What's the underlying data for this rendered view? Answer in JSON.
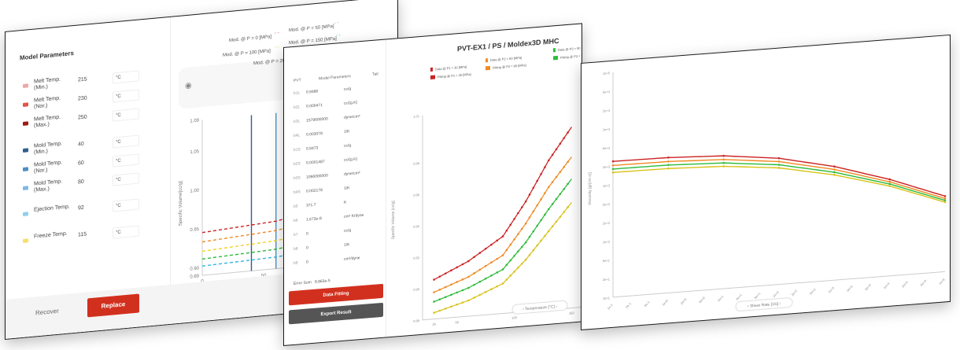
{
  "params_panel": {
    "title": "Model Parameters",
    "rows": [
      {
        "label": "Melt Temp. (Min.)",
        "value": "215",
        "unit": "°C",
        "color": "#f1a7a7"
      },
      {
        "label": "Melt Temp. (Nor.)",
        "value": "230",
        "unit": "°C",
        "color": "#e0554a"
      },
      {
        "label": "Melt Temp. (Max.)",
        "value": "250",
        "unit": "°C",
        "color": "#9b1c16"
      },
      {
        "label": "Mold Temp. (Min.)",
        "value": "40",
        "unit": "°C",
        "color": "#2f5f8c"
      },
      {
        "label": "Mold Temp. (Nor.)",
        "value": "60",
        "unit": "°C",
        "color": "#4d8fc4"
      },
      {
        "label": "Mold Temp. (Max.)",
        "value": "80",
        "unit": "°C",
        "color": "#7db9e6"
      },
      {
        "label": "Ejection Temp.",
        "value": "92",
        "unit": "°C",
        "color": "#8fd0ea"
      },
      {
        "label": "Freeze Temp.",
        "value": "115",
        "unit": "°C",
        "color": "#f7e06a"
      }
    ],
    "recover_label": "Recover",
    "replace_label": "Replace",
    "legend": [
      "Mod. @ P = 0 [MPa]",
      "Mod. @ P = 50 [MPa]",
      "Mod. @ P = 100 [MPa]",
      "Mod. @ P = 150 [MPa]",
      "Mod. @ P = 20"
    ],
    "y_axis_label": "Specific Volume[cc/g]",
    "x_axis_label": "Tempera",
    "y_ticks": [
      "1.09",
      "1.05",
      "1.00",
      "0.95",
      "0.90",
      "0.89"
    ],
    "x_ticks": [
      "0",
      "50",
      "100"
    ],
    "colors": {
      "accent": "#d2301e",
      "series": [
        "#cc2222",
        "#f08a24",
        "#f5d020",
        "#2dbb3a",
        "#2fb6e0"
      ]
    }
  },
  "fitting_panel": {
    "title": "PVT-EX1 / PS / Moldex3D MHC",
    "col_pvt": "PVT",
    "col_params": "Model Parameters",
    "col_tait": "Tait",
    "rows": [
      {
        "key": "b1L",
        "value": "0.9486",
        "unit": "cc/g"
      },
      {
        "key": "b2L",
        "value": "0.000471",
        "unit": "cc/(g.K)"
      },
      {
        "key": "b3L",
        "value": "1579600000",
        "unit": "dyne/cm²"
      },
      {
        "key": "b4L",
        "value": "0.003078",
        "unit": "1/K"
      },
      {
        "key": "b1S",
        "value": "0.9473",
        "unit": "cc/g"
      },
      {
        "key": "b2S",
        "value": "0.0001487",
        "unit": "cc/(g.K)"
      },
      {
        "key": "b3S",
        "value": "1096000000",
        "unit": "dyne/cm²"
      },
      {
        "key": "b4S",
        "value": "0.002178",
        "unit": "1/K"
      },
      {
        "key": "b5",
        "value": "371.7",
        "unit": "K"
      },
      {
        "key": "b6",
        "value": "1.673e-8",
        "unit": "cm² K/dyne"
      },
      {
        "key": "b7",
        "value": "0",
        "unit": "cc/g"
      },
      {
        "key": "b8",
        "value": "0",
        "unit": "1/K"
      },
      {
        "key": "b9",
        "value": "0",
        "unit": "cm²/dyne"
      }
    ],
    "error_label": "Error Sum",
    "error_value": "8.863e-5",
    "fit_label": "Data Fitting",
    "export_label": "Export Result",
    "legend": [
      "Data @ P1 = 30 [MPa]",
      "Data @ P2 = 60 [MPa]",
      "Data @ P3 = 90 [MPa]",
      "Data @ P4 = 120 [MPa]",
      "Fitting @ P1 = 30 [MPa]",
      "Fitting @ P2 = 60 [MPa]",
      "Fitting @ P3 = 90 [MPa]",
      "Fitting @ P4 = 120 [MPa]"
    ],
    "y_axis_label": "Specific Volume [cc/g]",
    "x_axis_label": "Temperature [°C]",
    "y_ticks": [
      "1.01",
      "0.98",
      "0.96",
      "0.94",
      "0.92",
      "0.90",
      "0.88"
    ],
    "x_ticks": [
      "30",
      "50",
      "100",
      "150"
    ],
    "colors": {
      "series": [
        "#cc2222",
        "#f08a24",
        "#2dbb3a",
        "#d9c21a"
      ]
    }
  },
  "viscosity_panel": {
    "y_axis_label": "Viscosity [g/(cm s)]",
    "x_axis_label": "Shear Rate [1/s]",
    "y_ticks": [
      "1e+5",
      "5e+4",
      "2e+4",
      "1e+4",
      "5e+3",
      "2e+3",
      "1e+3",
      "5e+2",
      "2e+2",
      "1e+2",
      "5e+1",
      "2e+1",
      "1e+1"
    ],
    "x_ticks": [
      "1e-1",
      "2e-1",
      "5e-1",
      "1e+0",
      "2e+0",
      "5e+0",
      "1e+1",
      "2e+1",
      "5e+1",
      "1e+2",
      "2e+2",
      "5e+2",
      "1e+3",
      "2e+3",
      "5e+3",
      "1e+4",
      "2e+4",
      "5e+4",
      "1e+5"
    ],
    "colors": {
      "series": [
        "#cc2222",
        "#f08a24",
        "#2dbb3a",
        "#d9c21a"
      ]
    }
  },
  "chart_data": [
    {
      "type": "line",
      "y_ticks": [
        1.09,
        1.05,
        1.0,
        0.95,
        0.9,
        0.89
      ],
      "x_ticks": [
        0,
        50,
        100
      ],
      "series": [
        {
          "name": "Mod. @ P = 0 [MPa]",
          "x": [
            0,
            60,
            80,
            120,
            160
          ],
          "y": [
            0.945,
            0.951,
            0.957,
            0.985,
            1.01
          ]
        },
        {
          "name": "Mod. @ P = 50 [MPa]",
          "x": [
            0,
            60,
            80,
            120,
            160
          ],
          "y": [
            0.933,
            0.939,
            0.944,
            0.968,
            0.99
          ]
        },
        {
          "name": "Mod. @ P = 100 [MPa]",
          "x": [
            0,
            60,
            80,
            120,
            160
          ],
          "y": [
            0.921,
            0.926,
            0.93,
            0.952,
            0.972
          ]
        },
        {
          "name": "Mod. @ P = 150 [MPa]",
          "x": [
            0,
            60,
            80,
            120,
            160
          ],
          "y": [
            0.911,
            0.915,
            0.919,
            0.937,
            0.955
          ]
        },
        {
          "name": "Mod. @ P = 20",
          "x": [
            0,
            60,
            80,
            120,
            160
          ],
          "y": [
            0.902,
            0.905,
            0.908,
            0.922,
            0.94
          ]
        }
      ],
      "verticals": [
        40,
        60,
        80,
        92,
        115
      ]
    },
    {
      "type": "scatter",
      "y_ticks": [
        1.01,
        0.98,
        0.96,
        0.94,
        0.92,
        0.9,
        0.88
      ],
      "x_ticks": [
        30,
        50,
        100,
        150
      ],
      "series": [
        {
          "name": "Data @ P1 = 30 [MPa]",
          "x": [
            30,
            60,
            90,
            110,
            130,
            150
          ],
          "y": [
            0.905,
            0.915,
            0.929,
            0.95,
            0.975,
            0.995
          ]
        },
        {
          "name": "Data @ P2 = 60 [MPa]",
          "x": [
            30,
            60,
            90,
            110,
            130,
            150
          ],
          "y": [
            0.897,
            0.905,
            0.917,
            0.936,
            0.958,
            0.976
          ]
        },
        {
          "name": "Data @ P3 = 90 [MPa]",
          "x": [
            30,
            60,
            90,
            110,
            130,
            150
          ],
          "y": [
            0.891,
            0.898,
            0.908,
            0.924,
            0.944,
            0.962
          ]
        },
        {
          "name": "Data @ P4 = 120 [MPa]",
          "x": [
            30,
            60,
            90,
            110,
            130,
            150
          ],
          "y": [
            0.884,
            0.89,
            0.899,
            0.913,
            0.93,
            0.947
          ]
        }
      ]
    },
    {
      "type": "line",
      "x_scale": "log",
      "y_scale": "log",
      "series": [
        {
          "x": [
            0.1,
            1,
            10,
            100,
            1000,
            10000,
            100000
          ],
          "y": [
            2600,
            2550,
            2300,
            1750,
            1050,
            520,
            220
          ]
        },
        {
          "x": [
            0.1,
            1,
            10,
            100,
            1000,
            10000,
            100000
          ],
          "y": [
            2200,
            2170,
            1980,
            1530,
            930,
            470,
            200
          ]
        },
        {
          "x": [
            0.1,
            1,
            10,
            100,
            1000,
            10000,
            100000
          ],
          "y": [
            1900,
            1880,
            1720,
            1340,
            830,
            430,
            185
          ]
        },
        {
          "x": [
            0.1,
            1,
            10,
            100,
            1000,
            10000,
            100000
          ],
          "y": [
            1650,
            1630,
            1500,
            1180,
            745,
            395,
            172
          ]
        }
      ]
    }
  ]
}
